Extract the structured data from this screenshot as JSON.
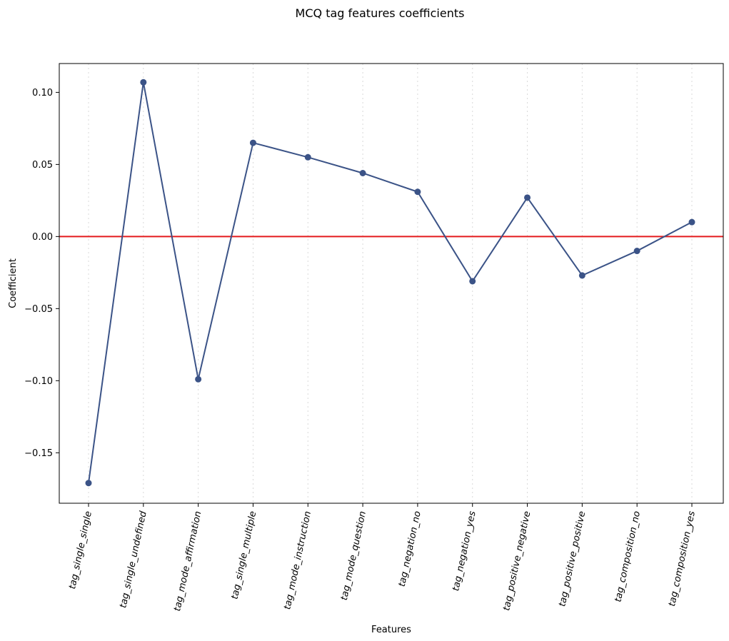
{
  "chart_data": {
    "type": "line",
    "title": "MCQ tag features coefficients",
    "xlabel": "Features",
    "ylabel": "Coefficient",
    "categories": [
      "tag_single_single",
      "tag_single_undefined",
      "tag_mode_affirmation",
      "tag_single_multiple",
      "tag_mode_instruction",
      "tag_mode_question",
      "tag_negation_no",
      "tag_negation_yes",
      "tag_positive_negative",
      "tag_positive_positive",
      "tag_composition_no",
      "tag_composition_yes"
    ],
    "values": [
      -0.171,
      0.107,
      -0.099,
      0.065,
      0.055,
      0.044,
      0.031,
      -0.031,
      0.027,
      -0.027,
      -0.01,
      0.01
    ],
    "ylim": [
      -0.185,
      0.12
    ],
    "yticks": [
      -0.15,
      -0.1,
      -0.05,
      0.0,
      0.05,
      0.1
    ],
    "ytick_labels": [
      "−0.15",
      "−0.10",
      "−0.05",
      "0.00",
      "0.05",
      "0.10"
    ],
    "grid": "x-dotted",
    "reference_line": {
      "y": 0.0,
      "color": "#e41a1c"
    },
    "line_color": "#3b5387"
  }
}
